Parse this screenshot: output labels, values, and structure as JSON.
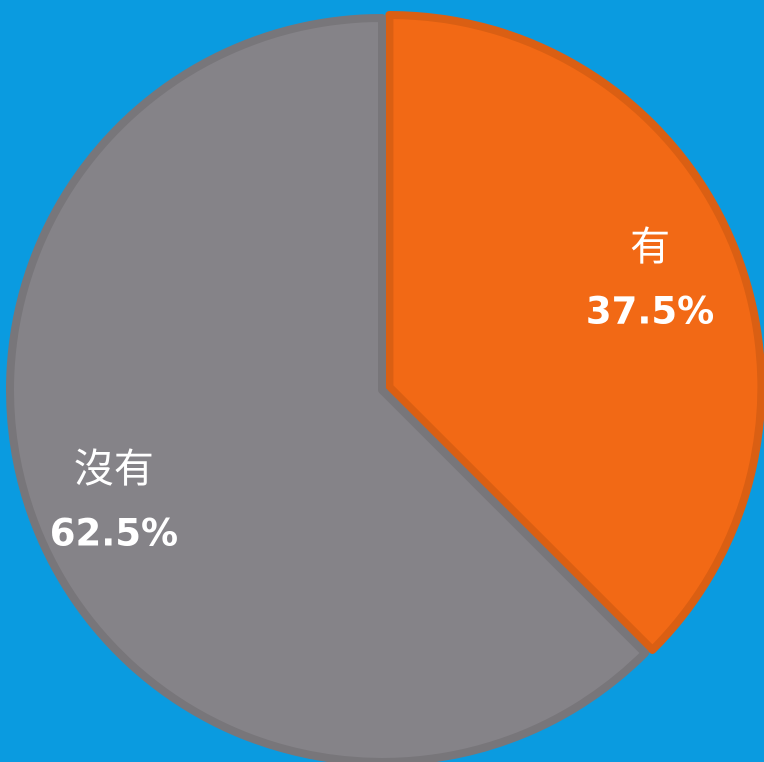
{
  "chart_data": {
    "type": "pie",
    "categories": [
      "有",
      "沒有"
    ],
    "values": [
      37.5,
      62.5
    ],
    "value_labels": [
      "37.5%",
      "62.5%"
    ],
    "colors": [
      "#f26915",
      "#858388"
    ],
    "background": "#0a9be0"
  }
}
